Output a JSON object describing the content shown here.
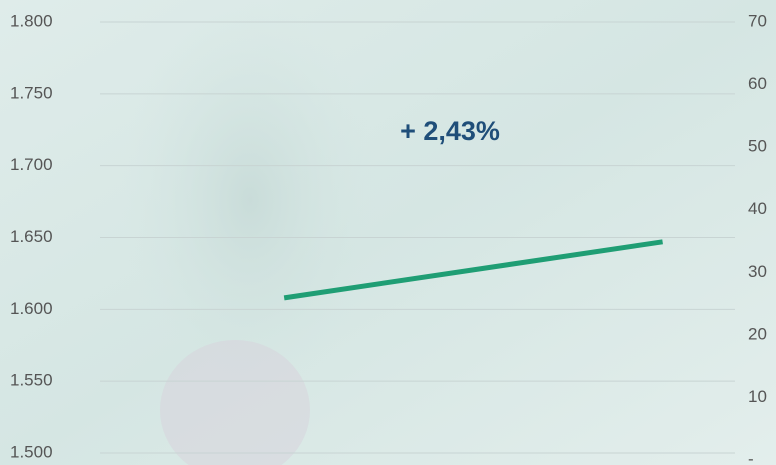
{
  "chart_data": {
    "type": "line",
    "categories": [
      null,
      null
    ],
    "series": [
      {
        "name": null,
        "color": "#1f9e74",
        "values": [
          1608,
          1647
        ]
      }
    ],
    "ylim": [
      1500,
      1800
    ],
    "yticks": [
      {
        "value": 1500,
        "label": "1.500"
      },
      {
        "value": 1550,
        "label": "1.550"
      },
      {
        "value": 1600,
        "label": "1.600"
      },
      {
        "value": 1650,
        "label": "1.650"
      },
      {
        "value": 1700,
        "label": "1.700"
      },
      {
        "value": 1750,
        "label": "1.750"
      },
      {
        "value": 1800,
        "label": "1.800"
      }
    ],
    "y2lim": [
      0,
      70
    ],
    "y2ticks": [
      {
        "value": 0,
        "label": "-"
      },
      10,
      20,
      30,
      40,
      50,
      60,
      70
    ],
    "annotations": [
      {
        "text": "+ 2,43%"
      }
    ],
    "grid": true
  }
}
